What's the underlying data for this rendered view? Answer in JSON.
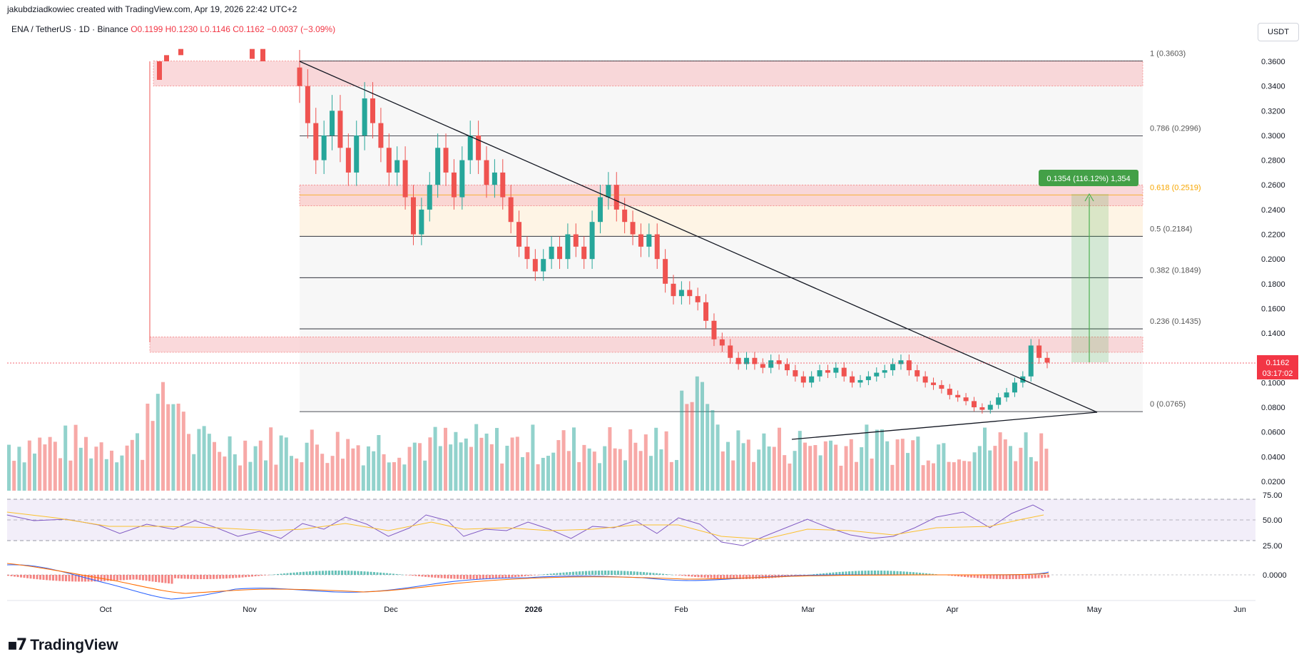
{
  "header": {
    "creator": "jakubdziadkowiec created with TradingView.com, Apr 19, 2026 22:42 UTC+2",
    "symbol": "ENA / TetherUS · 1D · Binance",
    "ohlc": "O0.1199 H0.1230 L0.1146 C0.1162 −0.0037 (−3.09%)",
    "currency": "USDT"
  },
  "logo": {
    "text": "TradingView"
  },
  "colors": {
    "up": "#26a69a",
    "down": "#ef5350",
    "zone": "#f8c9cc",
    "accent": "#4caf50",
    "fib618": "#f7a600"
  },
  "chart_data": {
    "type": "candlestick",
    "price_axis": {
      "ticks": [
        "0.3600",
        "0.3400",
        "0.3200",
        "0.3000",
        "0.2800",
        "0.2600",
        "0.2400",
        "0.2200",
        "0.2000",
        "0.1800",
        "0.1600",
        "0.1400",
        "0.1200",
        "0.1000",
        "0.0800",
        "0.0600",
        "0.0400",
        "0.0200"
      ],
      "range": [
        0.01,
        0.37
      ]
    },
    "time_axis": {
      "labels": [
        "Oct",
        "Nov",
        "Dec",
        "2026",
        "Feb",
        "Mar",
        "Apr",
        "May",
        "Jun"
      ]
    },
    "current_price": {
      "value": 0.1162,
      "label": "0.1162",
      "countdown": "03:17:02"
    },
    "fib_levels": [
      {
        "label": "1 (0.3603)",
        "value": 0.3603
      },
      {
        "label": "0.786 (0.2996)",
        "value": 0.2996
      },
      {
        "label": "0.618 (0.2519)",
        "value": 0.2519
      },
      {
        "label": "0.5 (0.2184)",
        "value": 0.2184
      },
      {
        "label": "0.382 (0.1849)",
        "value": 0.1849
      },
      {
        "label": "0.236 (0.1435)",
        "value": 0.1435
      },
      {
        "label": "0 (0.0765)",
        "value": 0.0765
      }
    ],
    "zones": [
      {
        "top": 0.3603,
        "bottom": 0.34
      },
      {
        "top": 0.26,
        "bottom": 0.243
      },
      {
        "top": 0.137,
        "bottom": 0.1245
      }
    ],
    "measure": {
      "label": "0.1354 (116.12%) 1,354",
      "from": 0.117,
      "to": 0.2519
    },
    "candles_close": [
      0.34,
      0.31,
      0.28,
      0.3,
      0.32,
      0.29,
      0.27,
      0.3,
      0.33,
      0.31,
      0.29,
      0.27,
      0.28,
      0.25,
      0.22,
      0.24,
      0.26,
      0.29,
      0.27,
      0.25,
      0.28,
      0.3,
      0.28,
      0.26,
      0.27,
      0.25,
      0.23,
      0.21,
      0.2,
      0.19,
      0.2,
      0.21,
      0.2,
      0.22,
      0.21,
      0.2,
      0.23,
      0.25,
      0.26,
      0.24,
      0.23,
      0.22,
      0.21,
      0.22,
      0.2,
      0.18,
      0.17,
      0.175,
      0.17,
      0.165,
      0.15,
      0.135,
      0.13,
      0.12,
      0.115,
      0.12,
      0.115,
      0.112,
      0.118,
      0.115,
      0.11,
      0.105,
      0.1,
      0.105,
      0.11,
      0.108,
      0.112,
      0.105,
      0.1,
      0.102,
      0.105,
      0.108,
      0.11,
      0.115,
      0.118,
      0.11,
      0.105,
      0.1,
      0.098,
      0.095,
      0.09,
      0.088,
      0.085,
      0.08,
      0.078,
      0.082,
      0.088,
      0.092,
      0.1,
      0.105,
      0.13,
      0.12,
      0.1162
    ],
    "rsi": {
      "ticks": [
        "75.00",
        "50.00",
        "25.00"
      ],
      "upper": 70,
      "lower": 30
    },
    "macd": {
      "ticks": [
        "0.0000"
      ]
    }
  }
}
